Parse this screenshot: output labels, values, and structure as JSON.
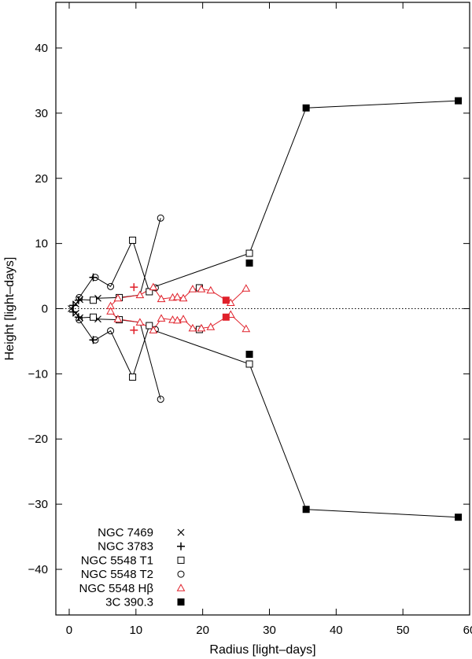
{
  "chart_data": {
    "type": "scatter",
    "xlabel": "Radius  [light–days]",
    "ylabel": "Height  [light–days]",
    "xlim": [
      -2,
      60
    ],
    "ylim": [
      -47,
      47
    ],
    "x_ticks": [
      0,
      10,
      20,
      30,
      40,
      50,
      60
    ],
    "y_ticks": [
      -40,
      -30,
      -20,
      -10,
      0,
      10,
      20,
      30,
      40
    ],
    "x_tick_labels": [
      "0",
      "10",
      "20",
      "30",
      "40",
      "50",
      "60"
    ],
    "y_tick_labels": [
      "−40",
      "−30",
      "−20",
      "−10",
      "0",
      "10",
      "20",
      "30",
      "40"
    ],
    "grid": false,
    "legend_position": "bottom-left",
    "reference_line": {
      "y": 0,
      "style": "dotted"
    },
    "series": [
      {
        "name": "NGC 7469",
        "marker": "cross-x",
        "color": "#000000",
        "filled": false,
        "points": [
          [
            0.3,
            0
          ],
          [
            1.0,
            0.7
          ],
          [
            1.0,
            -0.7
          ],
          [
            1.6,
            1.4
          ],
          [
            1.6,
            -1.4
          ],
          [
            4.3,
            1.6
          ],
          [
            4.3,
            -1.6
          ]
        ]
      },
      {
        "name": "NGC 3783",
        "marker": "plus",
        "color": "#000000",
        "filled": false,
        "points": [
          [
            0.6,
            0.5
          ],
          [
            0.6,
            -0.5
          ],
          [
            1.4,
            1.3
          ],
          [
            1.4,
            -1.3
          ],
          [
            3.6,
            4.8
          ],
          [
            3.6,
            -4.8
          ]
        ]
      },
      {
        "name": "NGC 5548 T1",
        "marker": "square",
        "color": "#000000",
        "filled": false,
        "points": [
          [
            3.6,
            1.3
          ],
          [
            3.6,
            -1.3
          ],
          [
            7.5,
            1.7
          ],
          [
            7.5,
            -1.7
          ],
          [
            9.5,
            10.5
          ],
          [
            9.5,
            -10.5
          ],
          [
            12.0,
            2.6
          ],
          [
            12.0,
            -2.6
          ],
          [
            19.5,
            3.2
          ],
          [
            19.5,
            -3.2
          ],
          [
            27.0,
            8.5
          ],
          [
            27.0,
            -8.5
          ]
        ]
      },
      {
        "name": "NGC 5548 T2",
        "marker": "circle",
        "color": "#000000",
        "filled": false,
        "points": [
          [
            1.5,
            1.7
          ],
          [
            1.5,
            -1.7
          ],
          [
            3.9,
            4.8
          ],
          [
            3.9,
            -4.8
          ],
          [
            6.2,
            3.4
          ],
          [
            6.2,
            -3.4
          ],
          [
            12.9,
            3.2
          ],
          [
            12.9,
            -3.2
          ],
          [
            13.7,
            13.9
          ],
          [
            13.7,
            -13.9
          ]
        ]
      },
      {
        "name": "NGC 5548 Hβ",
        "marker": "triangle",
        "color": "#e0202a",
        "filled": false,
        "points": [
          [
            6.2,
            0.4
          ],
          [
            6.2,
            -0.4
          ],
          [
            7.3,
            1.6
          ],
          [
            7.3,
            -1.6
          ],
          [
            10.6,
            2.1
          ],
          [
            10.6,
            -2.1
          ],
          [
            12.6,
            3.3
          ],
          [
            12.6,
            -3.3
          ],
          [
            13.8,
            1.5
          ],
          [
            13.8,
            -1.5
          ],
          [
            15.5,
            1.7
          ],
          [
            15.5,
            -1.7
          ],
          [
            16.2,
            1.8
          ],
          [
            16.2,
            -1.8
          ],
          [
            17.1,
            1.6
          ],
          [
            17.1,
            -1.6
          ],
          [
            18.5,
            3.0
          ],
          [
            18.5,
            -3.0
          ],
          [
            19.8,
            3.0
          ],
          [
            19.8,
            -3.0
          ],
          [
            21.2,
            2.8
          ],
          [
            21.2,
            -2.8
          ],
          [
            24.2,
            0.9
          ],
          [
            24.2,
            -0.9
          ],
          [
            26.5,
            3.1
          ],
          [
            26.5,
            -3.1
          ]
        ]
      },
      {
        "name": "NGC 5548 Hβ (red squares)",
        "marker": "filled-square",
        "color": "#e0202a",
        "filled": true,
        "in_legend": false,
        "points": [
          [
            23.5,
            1.3
          ],
          [
            23.5,
            -1.3
          ]
        ]
      },
      {
        "name": "NGC 5548 Hβ (red crosses)",
        "marker": "plus",
        "color": "#e0202a",
        "filled": false,
        "in_legend": false,
        "points": [
          [
            9.7,
            3.3
          ],
          [
            9.7,
            -3.3
          ]
        ]
      },
      {
        "name": "3C 390.3",
        "marker": "filled-square",
        "color": "#000000",
        "filled": true,
        "points": [
          [
            27.0,
            7.0
          ],
          [
            27.0,
            -7.0
          ],
          [
            35.5,
            30.8
          ],
          [
            35.5,
            -30.8
          ],
          [
            58.3,
            31.9
          ],
          [
            58.3,
            -32.0
          ]
        ]
      }
    ],
    "connecting_lines": [
      {
        "color": "#000000",
        "points": [
          [
            0.3,
            0
          ],
          [
            0.6,
            0.5
          ],
          [
            1.0,
            0.7
          ],
          [
            1.4,
            1.3
          ],
          [
            1.5,
            1.7
          ],
          [
            3.6,
            4.8
          ],
          [
            3.9,
            4.8
          ],
          [
            6.2,
            3.4
          ],
          [
            9.5,
            10.5
          ],
          [
            12.0,
            2.6
          ],
          [
            12.6,
            3.3
          ],
          [
            27.0,
            8.5
          ],
          [
            35.5,
            30.8
          ],
          [
            58.3,
            31.9
          ]
        ]
      },
      {
        "color": "#000000",
        "points": [
          [
            0.3,
            0
          ],
          [
            0.6,
            -0.5
          ],
          [
            1.0,
            -0.7
          ],
          [
            1.4,
            -1.3
          ],
          [
            1.5,
            -1.7
          ],
          [
            3.6,
            -4.8
          ],
          [
            3.9,
            -4.8
          ],
          [
            6.2,
            -3.4
          ],
          [
            9.5,
            -10.5
          ],
          [
            12.0,
            -2.6
          ],
          [
            12.6,
            -3.3
          ],
          [
            27.0,
            -8.5
          ],
          [
            35.5,
            -30.8
          ],
          [
            58.3,
            -32.0
          ]
        ]
      },
      {
        "color": "#000000",
        "points": [
          [
            1.6,
            1.4
          ],
          [
            3.6,
            1.3
          ],
          [
            4.3,
            1.6
          ],
          [
            7.5,
            1.7
          ],
          [
            10.6,
            2.1
          ],
          [
            13.7,
            13.9
          ]
        ]
      },
      {
        "color": "#000000",
        "points": [
          [
            1.6,
            -1.4
          ],
          [
            3.6,
            -1.3
          ],
          [
            4.3,
            -1.6
          ],
          [
            7.5,
            -1.7
          ],
          [
            10.6,
            -2.1
          ],
          [
            13.7,
            -13.9
          ]
        ]
      },
      {
        "color": "#e0202a",
        "points": [
          [
            6.2,
            0.4
          ],
          [
            7.3,
            1.6
          ],
          [
            10.6,
            2.1
          ],
          [
            12.6,
            3.3
          ],
          [
            13.8,
            1.5
          ],
          [
            15.5,
            1.7
          ],
          [
            16.2,
            1.8
          ],
          [
            17.1,
            1.6
          ],
          [
            18.5,
            3.0
          ],
          [
            19.8,
            3.0
          ],
          [
            21.2,
            2.8
          ],
          [
            23.5,
            1.3
          ],
          [
            24.2,
            0.9
          ],
          [
            26.5,
            3.1
          ]
        ]
      },
      {
        "color": "#e0202a",
        "points": [
          [
            6.2,
            -0.4
          ],
          [
            7.3,
            -1.6
          ],
          [
            10.6,
            -2.1
          ],
          [
            12.6,
            -3.3
          ],
          [
            13.8,
            -1.5
          ],
          [
            15.5,
            -1.7
          ],
          [
            16.2,
            -1.8
          ],
          [
            17.1,
            -1.6
          ],
          [
            18.5,
            -3.0
          ],
          [
            19.8,
            -3.0
          ],
          [
            21.2,
            -2.8
          ],
          [
            23.5,
            -1.3
          ],
          [
            24.2,
            -0.9
          ],
          [
            26.5,
            -3.1
          ]
        ]
      }
    ]
  }
}
